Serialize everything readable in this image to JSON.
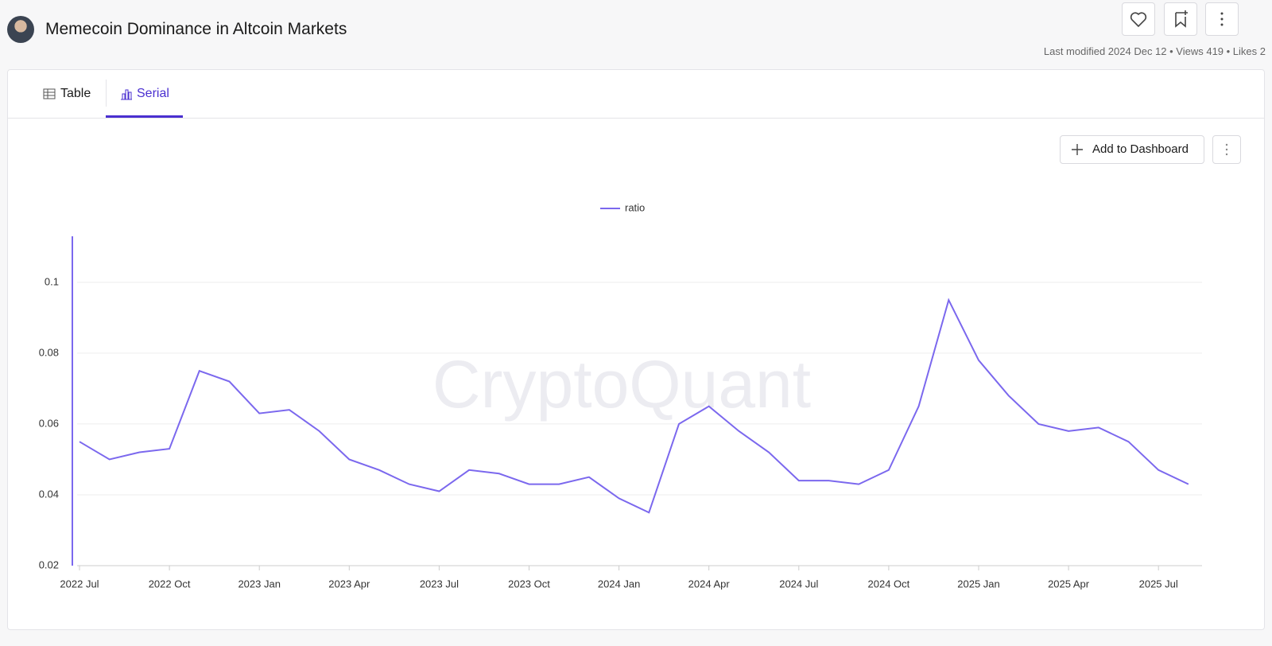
{
  "header": {
    "title": "Memecoin Dominance in Altcoin Markets",
    "meta": "Last modified 2024 Dec 12 • Views 419 • Likes 2"
  },
  "tabs": [
    "Table",
    "Serial"
  ],
  "button": "Add to Dashboard",
  "watermark": "CryptoQuant",
  "chart_data": {
    "type": "line",
    "x": [
      "2022 Jul",
      "2022 Aug",
      "2022 Sep",
      "2022 Oct",
      "2022 Nov",
      "2022 Dec",
      "2023 Jan",
      "2023 Feb",
      "2023 Mar",
      "2023 Apr",
      "2023 May",
      "2023 Jun",
      "2023 Jul",
      "2023 Aug",
      "2023 Sep",
      "2023 Oct",
      "2023 Nov",
      "2023 Dec",
      "2024 Jan",
      "2024 Feb",
      "2024 Mar",
      "2024 Apr",
      "2024 May",
      "2024 Jun",
      "2024 Jul",
      "2024 Aug",
      "2024 Sep",
      "2024 Oct",
      "2024 Nov",
      "2024 Dec",
      "2025 Jan",
      "2025 Feb",
      "2025 Mar",
      "2025 Apr",
      "2025 May",
      "2025 Jun",
      "2025 Jul",
      "2025 Aug"
    ],
    "series": [
      {
        "name": "ratio",
        "color": "#7b68ee",
        "values": [
          0.055,
          0.05,
          0.052,
          0.053,
          0.075,
          0.072,
          0.063,
          0.064,
          0.058,
          0.05,
          0.047,
          0.043,
          0.041,
          0.047,
          0.046,
          0.043,
          0.043,
          0.045,
          0.039,
          0.035,
          0.06,
          0.065,
          0.058,
          0.052,
          0.044,
          0.044,
          0.043,
          0.047,
          0.065,
          0.095,
          0.078,
          0.068,
          0.06,
          0.058,
          0.059,
          0.055,
          0.047,
          0.043
        ]
      }
    ],
    "ylim": [
      0.02,
      0.113
    ],
    "yticks": [
      0.02,
      0.04,
      0.06,
      0.08,
      0.1
    ],
    "xticks": [
      "2022 Jul",
      "2022 Oct",
      "2023 Jan",
      "2023 Apr",
      "2023 Jul",
      "2023 Oct",
      "2024 Jan",
      "2024 Apr",
      "2024 Jul",
      "2024 Oct",
      "2025 Jan",
      "2025 Apr",
      "2025 Jul"
    ],
    "grid": true
  }
}
